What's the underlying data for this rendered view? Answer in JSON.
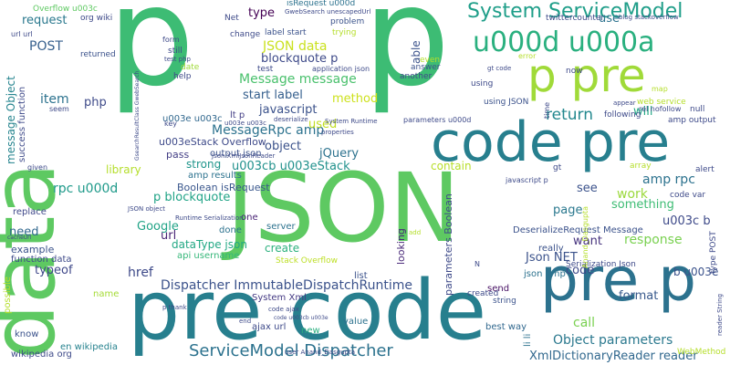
{
  "cloud": {
    "words": [
      {
        "text": "p",
        "color": "#3dbc74"
      },
      {
        "text": "p",
        "color": "#3dbc74"
      },
      {
        "text": "data",
        "color": "#5ec962"
      },
      {
        "text": "JSON",
        "color": "#5ec962"
      },
      {
        "text": "pre code",
        "color": "#277f8e"
      },
      {
        "text": "code pre",
        "color": "#277f8e"
      },
      {
        "text": "p pre",
        "color": "#a0da39"
      },
      {
        "text": "pre p",
        "color": "#2c728e"
      },
      {
        "text": "u000d u000a",
        "color": "#2ab07f"
      },
      {
        "text": "System ServiceModel",
        "color": "#1f9e89"
      },
      {
        "text": "ServiceModel Dispatcher",
        "color": "#2c728e"
      },
      {
        "text": "Dispatcher ImmutableDispatchRuntime",
        "color": "#3b528b"
      },
      {
        "text": "Object parameters",
        "color": "#2a788e"
      },
      {
        "text": "XmlDictionaryReader reader",
        "color": "#31688e"
      },
      {
        "text": "Message message",
        "color": "#4ac16d"
      },
      {
        "text": "MessageRpc amp",
        "color": "#2c728e"
      },
      {
        "text": "JSON data",
        "color": "#cae11f"
      },
      {
        "text": "blockquote p",
        "color": "#3e4a89"
      },
      {
        "text": "start label",
        "color": "#355f8d"
      },
      {
        "text": "javascript",
        "color": "#3b528b"
      },
      {
        "text": "u003cb u003eStack",
        "color": "#21918c"
      },
      {
        "text": "p blockquote",
        "color": "#20a386"
      },
      {
        "text": "return",
        "color": "#23888e"
      },
      {
        "text": "response",
        "color": "#7ad151"
      },
      {
        "text": "contain",
        "color": "#b8de29"
      },
      {
        "text": "jQuery",
        "color": "#2c728e"
      },
      {
        "text": "object",
        "color": "#3b528b"
      },
      {
        "text": "u003c b",
        "color": "#3e4a89"
      },
      {
        "text": "b u003e",
        "color": "#3b528b"
      },
      {
        "text": "code",
        "color": "#3e4a89"
      },
      {
        "text": "format",
        "color": "#38598c"
      },
      {
        "text": "call",
        "color": "#7ad151"
      },
      {
        "text": "Json NET",
        "color": "#3b528b"
      },
      {
        "text": "url",
        "color": "#482475"
      },
      {
        "text": "create",
        "color": "#2cb17e"
      },
      {
        "text": "message Object",
        "color": "#25848e"
      },
      {
        "text": "item",
        "color": "#2c728e"
      },
      {
        "text": "php",
        "color": "#3e4a89"
      },
      {
        "text": "request",
        "color": "#2a788e"
      },
      {
        "text": "POST",
        "color": "#355f8d"
      },
      {
        "text": "type",
        "color": "#440154"
      },
      {
        "text": "strong",
        "color": "#1f958b"
      },
      {
        "text": "library",
        "color": "#b5de2b"
      },
      {
        "text": "rpc u000d",
        "color": "#1f9a8a"
      },
      {
        "text": "Google",
        "color": "#20a386"
      },
      {
        "text": "dataType json",
        "color": "#22a884"
      },
      {
        "text": "href",
        "color": "#3e4a89"
      },
      {
        "text": "typeof",
        "color": "#3f4889"
      },
      {
        "text": "need",
        "color": "#31688e"
      },
      {
        "text": "work",
        "color": "#9bd93c"
      },
      {
        "text": "page",
        "color": "#2a788e"
      },
      {
        "text": "see",
        "color": "#3b528b"
      },
      {
        "text": "want",
        "color": "#46337e"
      },
      {
        "text": "something",
        "color": "#3dbc74"
      },
      {
        "text": "amp rpc",
        "color": "#2c728e"
      },
      {
        "text": "will",
        "color": "#22a884"
      },
      {
        "text": "use",
        "color": "#2c728e"
      },
      {
        "text": "able",
        "color": "#3b528b"
      },
      {
        "text": "method",
        "color": "#cde11d"
      },
      {
        "text": "used",
        "color": "#c2df23"
      },
      {
        "text": "u003eStack Overflow",
        "color": "#3e4a89"
      },
      {
        "text": "u003e u003c",
        "color": "#31688e"
      },
      {
        "text": "lt p",
        "color": "#433e85"
      },
      {
        "text": "pass",
        "color": "#433e85"
      },
      {
        "text": "output json",
        "color": "#3b528b"
      },
      {
        "text": "Boolean isRequest",
        "color": "#39568c"
      },
      {
        "text": "amp results",
        "color": "#2c728e"
      },
      {
        "text": "parameters Boolean",
        "color": "#3e4a89"
      },
      {
        "text": "looking",
        "color": "#482878"
      },
      {
        "text": "DeserializeRequest Message",
        "color": "#3b528b"
      },
      {
        "text": "Stack Overflow",
        "color": "#bddf26"
      },
      {
        "text": "server",
        "color": "#2c728e"
      },
      {
        "text": "done",
        "color": "#2c728e"
      },
      {
        "text": "one",
        "color": "#482475"
      },
      {
        "text": "api username",
        "color": "#35b779"
      },
      {
        "text": "function data",
        "color": "#3e4a89"
      },
      {
        "text": "example",
        "color": "#3b528b"
      },
      {
        "text": "replace",
        "color": "#3f4889"
      },
      {
        "text": "name",
        "color": "#a5db36"
      },
      {
        "text": "know",
        "color": "#3b528b"
      },
      {
        "text": "wikipedia org",
        "color": "#3e4a89"
      },
      {
        "text": "en wikipedia",
        "color": "#26828e"
      },
      {
        "text": "ajax url",
        "color": "#3e4a89"
      },
      {
        "text": "new",
        "color": "#29af7f"
      },
      {
        "text": "value",
        "color": "#2c728e"
      },
      {
        "text": "list",
        "color": "#3b528b"
      },
      {
        "text": "System Xml",
        "color": "#443983"
      },
      {
        "text": "best way",
        "color": "#31688e"
      },
      {
        "text": "send",
        "color": "#471063"
      },
      {
        "text": "string",
        "color": "#3b528b"
      },
      {
        "text": "created",
        "color": "#3e4a89"
      },
      {
        "text": "really",
        "color": "#3b528b"
      },
      {
        "text": "json amp",
        "color": "#2c728e"
      },
      {
        "text": "Serialization Json",
        "color": "#3e4a89"
      },
      {
        "text": "li li",
        "color": "#2c728e"
      },
      {
        "text": "possible",
        "color": "#b5de2b"
      },
      {
        "text": "Overflow u003c",
        "color": "#5ec962"
      },
      {
        "text": "org wiki",
        "color": "#3e4a89"
      },
      {
        "text": "url url",
        "color": "#3e4a89"
      },
      {
        "text": "returned",
        "color": "#3b528b"
      },
      {
        "text": "Net",
        "color": "#3e4a89"
      },
      {
        "text": "isRequest u000d",
        "color": "#2c728e"
      },
      {
        "text": "GwebSearch unescapedUrl",
        "color": "#3e4a89"
      },
      {
        "text": "change",
        "color": "#3e4a89"
      },
      {
        "text": "label start",
        "color": "#3b528b"
      },
      {
        "text": "trying",
        "color": "#b5de2b"
      },
      {
        "text": "still",
        "color": "#3e4a89"
      },
      {
        "text": "form",
        "color": "#3e4a89"
      },
      {
        "text": "date",
        "color": "#a0da39"
      },
      {
        "text": "help",
        "color": "#3e4a89"
      },
      {
        "text": "test",
        "color": "#3e4a89"
      },
      {
        "text": "problem",
        "color": "#3b528b"
      },
      {
        "text": "application json",
        "color": "#3e4a89"
      },
      {
        "text": "answer",
        "color": "#3b528b"
      },
      {
        "text": "another",
        "color": "#3e4a89"
      },
      {
        "text": "even",
        "color": "#b5de2b"
      },
      {
        "text": "using JSON",
        "color": "#3b528b"
      },
      {
        "text": "using",
        "color": "#3e4a89"
      },
      {
        "text": "parameters u000d",
        "color": "#3e4a89"
      },
      {
        "text": "System Runtime",
        "color": "#3e4a89"
      },
      {
        "text": "deserialize",
        "color": "#3e4a89"
      },
      {
        "text": "u003e u003c",
        "color": "#3e4a89"
      },
      {
        "text": "properties",
        "color": "#3e4a89"
      },
      {
        "text": "Json XmlJsonReader",
        "color": "#3e4a89"
      },
      {
        "text": "key",
        "color": "#3e4a89"
      },
      {
        "text": "now",
        "color": "#3e4a89"
      },
      {
        "text": "gt code",
        "color": "#3e4a89"
      },
      {
        "text": "error",
        "color": "#b5de2b"
      },
      {
        "text": "twittercounter",
        "color": "#3e4a89"
      },
      {
        "text": "blog stackoverflow",
        "color": "#3e4a89"
      },
      {
        "text": "time",
        "color": "#3e4a89"
      },
      {
        "text": "following",
        "color": "#3e4a89"
      },
      {
        "text": "amp output",
        "color": "#3e4a89"
      },
      {
        "text": "web service",
        "color": "#b5de2b"
      },
      {
        "text": "rel nofollow",
        "color": "#3e4a89"
      },
      {
        "text": "null",
        "color": "#3e4a89"
      },
      {
        "text": "map",
        "color": "#b5de2b"
      },
      {
        "text": "alert",
        "color": "#3e4a89"
      },
      {
        "text": "array",
        "color": "#b5de2b"
      },
      {
        "text": "code var",
        "color": "#3e4a89"
      },
      {
        "text": "gt",
        "color": "#3e4a89"
      },
      {
        "text": "javascript p",
        "color": "#3e4a89"
      },
      {
        "text": "type POST",
        "color": "#3e4a89"
      },
      {
        "text": "reader String",
        "color": "#3e4a89"
      },
      {
        "text": "WebMethod",
        "color": "#b5de2b"
      },
      {
        "text": "user Anand_Dasgupta",
        "color": "#3e4a89"
      },
      {
        "text": "Anand_Dasgupta",
        "color": "#b5de2b"
      },
      {
        "text": "code ajax",
        "color": "#3e4a89"
      },
      {
        "text": "code u003cb u003e",
        "color": "#3e4a89"
      },
      {
        "text": "end",
        "color": "#3e4a89"
      },
      {
        "text": "test php",
        "color": "#3e4a89"
      },
      {
        "text": "success function",
        "color": "#3e4a89"
      },
      {
        "text": "given",
        "color": "#3e4a89"
      },
      {
        "text": "cacheUrl",
        "color": "#3e4a89"
      },
      {
        "text": "Runtime Serialization",
        "color": "#3e4a89"
      },
      {
        "text": "p thank",
        "color": "#3e4a89"
      },
      {
        "text": "JSON object",
        "color": "#3e4a89"
      },
      {
        "text": "add",
        "color": "#b5de2b"
      },
      {
        "text": "N",
        "color": "#3e4a89"
      },
      {
        "text": "seem",
        "color": "#3e4a89"
      },
      {
        "text": "GsearchResultClass GwebSearch",
        "color": "#3e4a89"
      },
      {
        "text": "appear",
        "color": "#3e4a89"
      }
    ]
  }
}
